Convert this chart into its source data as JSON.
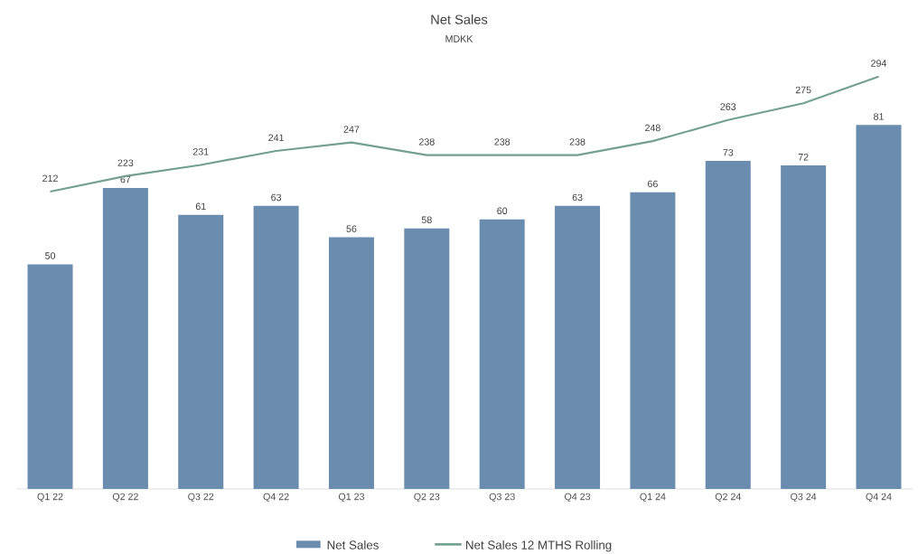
{
  "chart_data": {
    "type": "bar",
    "title": "Net Sales",
    "subtitle": "MDKK",
    "categories": [
      "Q1 22",
      "Q2 22",
      "Q3 22",
      "Q4 22",
      "Q1 23",
      "Q2 23",
      "Q3 23",
      "Q4 23",
      "Q1 24",
      "Q2 24",
      "Q3 24",
      "Q4 24"
    ],
    "series": [
      {
        "name": "Net Sales",
        "color": "#6a8caf",
        "values": [
          50,
          67,
          61,
          63,
          56,
          58,
          60,
          63,
          66,
          73,
          72,
          81
        ]
      },
      {
        "name": "Net Sales 12 MTHS Rolling",
        "type": "line",
        "axis": "y2",
        "color": "#73a08f",
        "values": [
          212,
          223,
          231,
          241,
          247,
          238,
          238,
          238,
          248,
          263,
          275,
          294
        ]
      }
    ],
    "data_labels": true,
    "legend": "bottom",
    "tick_labels": "x"
  }
}
